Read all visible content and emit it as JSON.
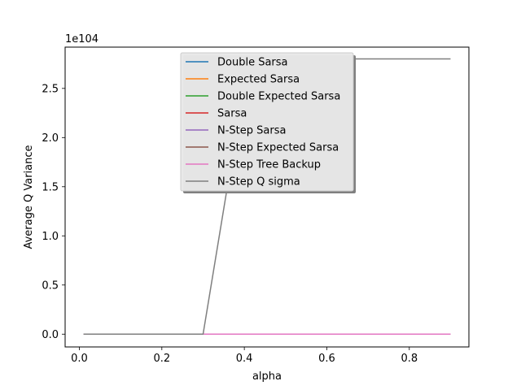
{
  "chart_data": {
    "type": "line",
    "xlabel": "alpha",
    "ylabel": "Average Q Variance",
    "y_exponent_label": "1e104",
    "xlim": [
      -0.0345,
      0.9445
    ],
    "ylim": [
      -0.13,
      2.92
    ],
    "xticks": [
      0.0,
      0.2,
      0.4,
      0.6,
      0.8
    ],
    "xtick_labels": [
      "0.0",
      "0.2",
      "0.4",
      "0.6",
      "0.8"
    ],
    "yticks": [
      0.0,
      0.5,
      1.0,
      1.5,
      2.0,
      2.5
    ],
    "ytick_labels": [
      "0.0",
      "0.5",
      "1.0",
      "1.5",
      "2.0",
      "2.5"
    ],
    "grid": false,
    "legend_position": "top-center",
    "series": [
      {
        "name": "Double Sarsa",
        "color": "#1f77b4",
        "x": [
          0.01,
          0.9
        ],
        "y": [
          0.0,
          0.0
        ]
      },
      {
        "name": "Expected Sarsa",
        "color": "#ff7f0e",
        "x": [
          0.01,
          0.9
        ],
        "y": [
          0.0,
          0.0
        ]
      },
      {
        "name": "Double Expected Sarsa",
        "color": "#2ca02c",
        "x": [
          0.01,
          0.9
        ],
        "y": [
          0.0,
          0.0
        ]
      },
      {
        "name": "Sarsa",
        "color": "#d62728",
        "x": [
          0.01,
          0.9
        ],
        "y": [
          0.0,
          0.0
        ]
      },
      {
        "name": "N-Step Sarsa",
        "color": "#9467bd",
        "x": [
          0.01,
          0.9
        ],
        "y": [
          0.0,
          0.0
        ]
      },
      {
        "name": "N-Step Expected Sarsa",
        "color": "#8c564b",
        "x": [
          0.01,
          0.9
        ],
        "y": [
          0.0,
          0.0
        ]
      },
      {
        "name": "N-Step Tree Backup",
        "color": "#e377c2",
        "x": [
          0.01,
          0.9
        ],
        "y": [
          0.0,
          0.0
        ]
      },
      {
        "name": "N-Step Q sigma",
        "color": "#7f7f7f",
        "x": [
          0.01,
          0.3,
          0.41,
          0.9
        ],
        "y": [
          0.0,
          0.0,
          2.8,
          2.8
        ]
      }
    ]
  }
}
